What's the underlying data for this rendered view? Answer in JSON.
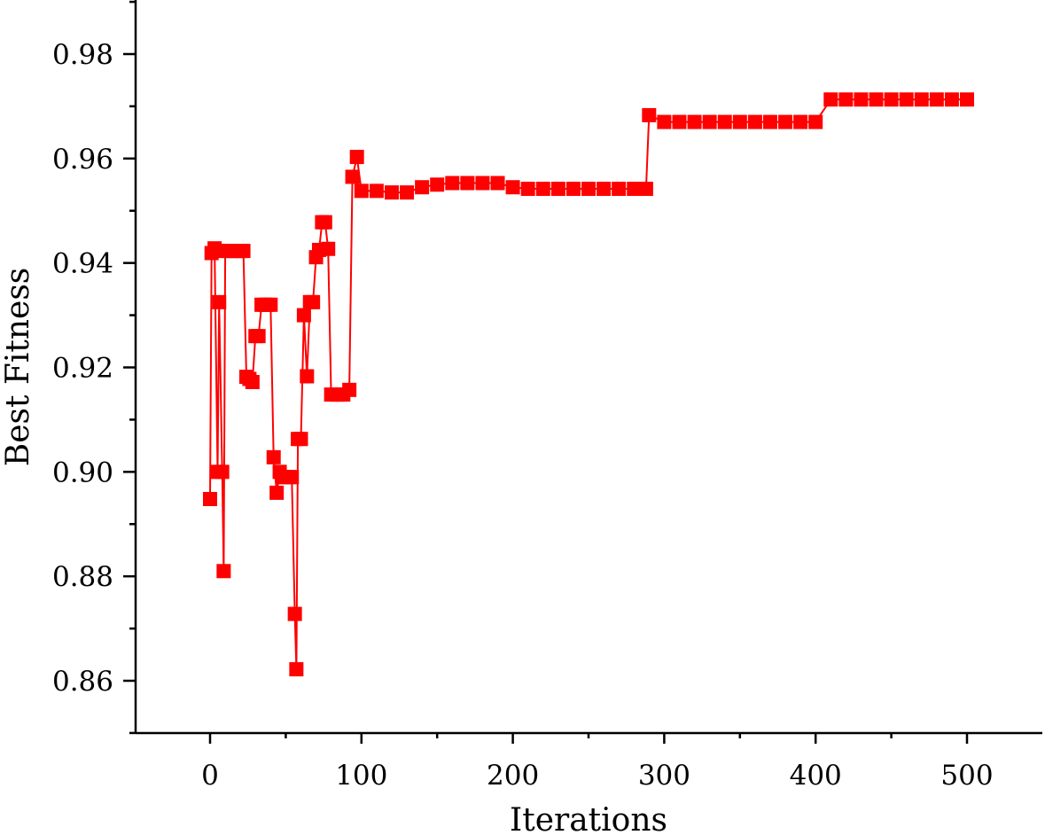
{
  "chart_data": {
    "type": "line",
    "title": "",
    "xlabel": "Iterations",
    "ylabel": "Best Fitness",
    "xlim": [
      -50,
      550
    ],
    "ylim": [
      0.85,
      0.99
    ],
    "xticks": [
      0,
      100,
      200,
      300,
      400,
      500
    ],
    "xtick_labels": [
      "0",
      "100",
      "200",
      "300",
      "400",
      "500"
    ],
    "yticks": [
      0.86,
      0.88,
      0.9,
      0.92,
      0.94,
      0.96,
      0.98
    ],
    "ytick_labels": [
      "0.86",
      "0.88",
      "0.90",
      "0.92",
      "0.94",
      "0.96",
      "0.98"
    ],
    "grid": false,
    "legend": "none",
    "series_color": "#ff0000",
    "marker": "square",
    "series": [
      {
        "x": [
          0,
          1,
          3,
          5,
          6,
          8,
          9,
          10,
          12,
          15,
          18,
          20,
          22,
          24,
          26,
          28,
          30,
          32,
          34,
          36,
          38,
          40,
          42,
          44,
          46,
          48,
          50,
          52,
          54,
          56,
          57,
          58,
          60,
          62,
          64,
          66,
          68,
          70,
          72,
          74,
          76,
          78,
          80,
          84,
          88,
          92,
          94,
          97,
          100,
          110,
          120,
          130,
          140,
          150,
          160,
          170,
          180,
          190,
          200,
          210,
          220,
          230,
          240,
          250,
          260,
          270,
          280,
          288,
          290,
          300,
          310,
          320,
          330,
          340,
          350,
          360,
          370,
          380,
          390,
          400,
          410,
          420,
          430,
          440,
          450,
          460,
          470,
          480,
          490,
          500
        ],
        "y": [
          0.8948,
          0.9419,
          0.9428,
          0.9,
          0.9325,
          0.9,
          0.881,
          0.9423,
          0.9423,
          0.9423,
          0.9423,
          0.9423,
          0.9423,
          0.9182,
          0.9178,
          0.9172,
          0.926,
          0.926,
          0.932,
          0.932,
          0.932,
          0.932,
          0.9028,
          0.896,
          0.9,
          0.899,
          0.899,
          0.899,
          0.899,
          0.8728,
          0.8622,
          0.9063,
          0.9063,
          0.93,
          0.9183,
          0.9325,
          0.9325,
          0.9411,
          0.9425,
          0.9478,
          0.9478,
          0.9427,
          0.9148,
          0.9148,
          0.9148,
          0.9157,
          0.9565,
          0.9603,
          0.9538,
          0.9538,
          0.9535,
          0.9535,
          0.9545,
          0.955,
          0.9553,
          0.9553,
          0.9553,
          0.9553,
          0.9545,
          0.9542,
          0.9542,
          0.9542,
          0.9542,
          0.9542,
          0.9542,
          0.9542,
          0.9542,
          0.9542,
          0.9683,
          0.967,
          0.967,
          0.967,
          0.967,
          0.967,
          0.967,
          0.967,
          0.967,
          0.967,
          0.967,
          0.967,
          0.9713,
          0.9713,
          0.9713,
          0.9713,
          0.9713,
          0.9713,
          0.9713,
          0.9713,
          0.9713,
          0.9713
        ]
      }
    ]
  }
}
